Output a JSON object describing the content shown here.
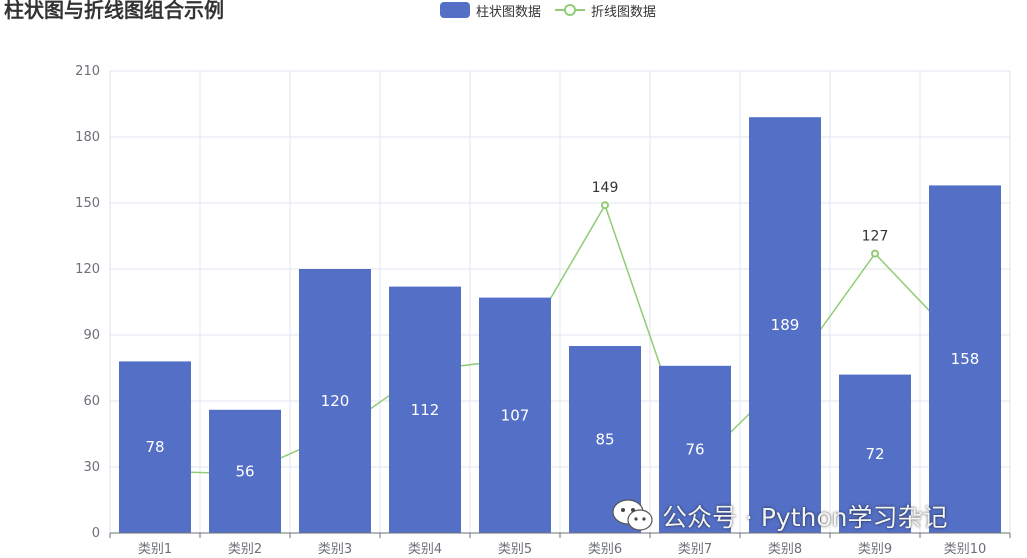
{
  "chart_data": {
    "type": "bar",
    "title": "柱状图与折线图组合示例",
    "categories": [
      "类别1",
      "类别2",
      "类别3",
      "类别4",
      "类别5",
      "类别6",
      "类别7",
      "类别8",
      "类别9",
      "类别10"
    ],
    "series": [
      {
        "name": "柱状图数据",
        "type": "bar",
        "color": "#5470c6",
        "values": [
          78,
          56,
          120,
          112,
          107,
          85,
          76,
          189,
          72,
          158
        ]
      },
      {
        "name": "折线图数据",
        "type": "line",
        "color": "#91cc75",
        "values": [
          28,
          27,
          45,
          74,
          79,
          149,
          30,
          70,
          127,
          84
        ],
        "labeled_points": [
          5,
          8
        ]
      }
    ],
    "ylim": [
      0,
      210
    ],
    "yticks": [
      0,
      30,
      60,
      90,
      120,
      150,
      180,
      210
    ],
    "grid": true,
    "legend": "top-center"
  },
  "watermark": {
    "icon": "wechat-icon",
    "text": "公众号 · Python学习杂记"
  }
}
